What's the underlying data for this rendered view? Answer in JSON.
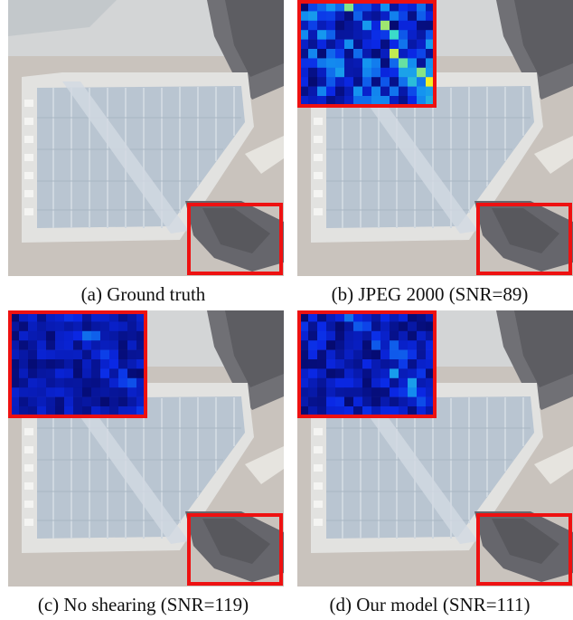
{
  "figure": {
    "panels": [
      {
        "id": "a",
        "caption": "(a) Ground truth",
        "has_error_map": false
      },
      {
        "id": "b",
        "caption": "(b) JPEG 2000 (SNR=89)",
        "has_error_map": true,
        "error_level": 0.62
      },
      {
        "id": "c",
        "caption": "(c) No shearing (SNR=119)",
        "has_error_map": true,
        "error_level": 0.3
      },
      {
        "id": "d",
        "caption": "(d) Our model (SNR=111)",
        "has_error_map": true,
        "error_level": 0.38
      }
    ],
    "colors": {
      "highlight_box": "#ee1111",
      "roof": "#b7c4d0",
      "ground": "#c9c3bd",
      "shadow": "#65656b",
      "error_low": "#0a14c8",
      "error_high": "#f0f020"
    }
  }
}
